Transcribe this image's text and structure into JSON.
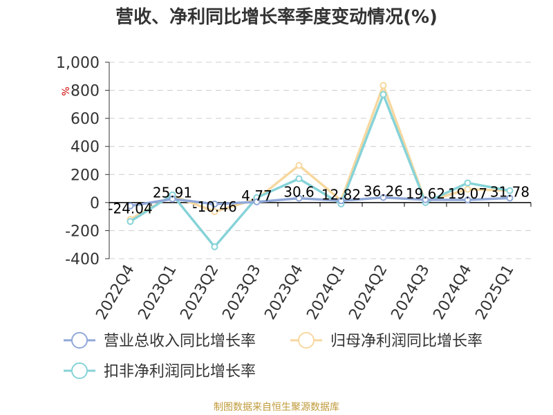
{
  "title": "营收、净利同比增长率季度变动情况(%)",
  "source": "制图数据来自恒生聚源数据库",
  "chart_data": {
    "type": "line",
    "title": "营收、净利同比增长率季度变动情况(%)",
    "ylabel": "%",
    "categories": [
      "2022Q4",
      "2023Q1",
      "2023Q2",
      "2023Q3",
      "2023Q4",
      "2024Q1",
      "2024Q2",
      "2024Q3",
      "2024Q4",
      "2025Q1"
    ],
    "ylim": [
      -400,
      1000
    ],
    "yticks": [
      -400,
      -200,
      0,
      200,
      400,
      600,
      800,
      1000
    ],
    "ytick_labels": [
      "-400",
      "-200",
      "0",
      "200",
      "400",
      "600",
      "800",
      "1,000"
    ],
    "grid": true,
    "legend_position": "bottom",
    "series": [
      {
        "name": "营业总收入同比增长率",
        "color": "#8fa8d8",
        "values": [
          -24.04,
          25.91,
          -10.46,
          4.77,
          30.6,
          12.82,
          36.26,
          19.62,
          19.07,
          31.78
        ],
        "labels": [
          "-24.04",
          "25.91",
          "-10.46",
          "4.77",
          "30.6",
          "12.82",
          "36.26",
          "19.62",
          "19.07",
          "31.78"
        ]
      },
      {
        "name": "归母净利润同比增长率",
        "color": "#f7d8a0",
        "values": [
          -120,
          50,
          -65,
          25,
          265,
          15,
          835,
          5,
          95,
          85
        ]
      },
      {
        "name": "扣非净利润同比增长率",
        "color": "#86d3d8",
        "values": [
          -135,
          55,
          -315,
          35,
          170,
          -10,
          770,
          0,
          140,
          85
        ]
      }
    ]
  }
}
